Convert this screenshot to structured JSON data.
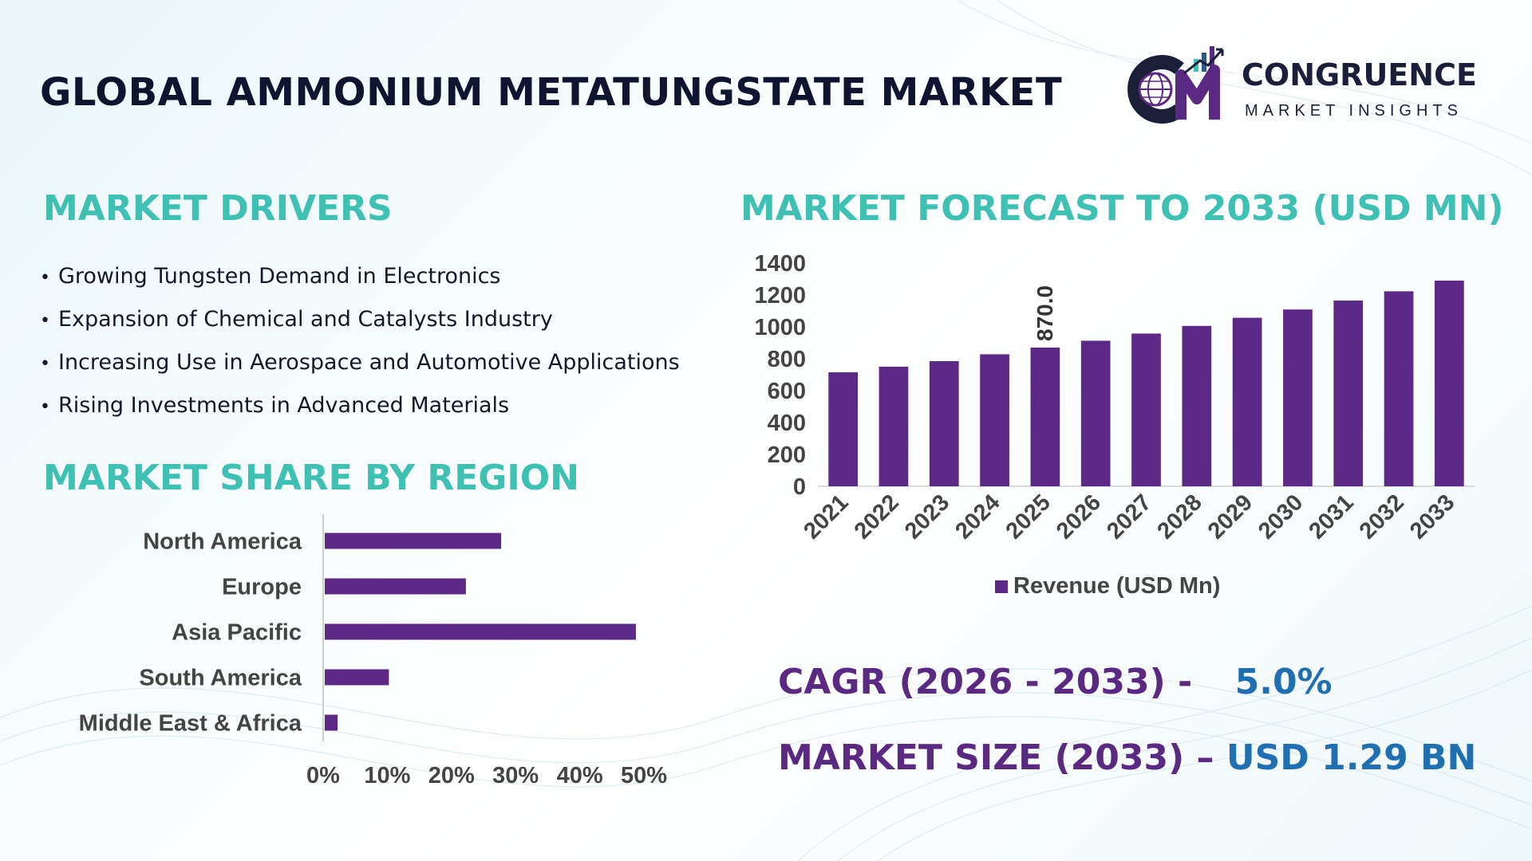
{
  "title": "GLOBAL AMMONIUM METATUNGSTATE MARKET",
  "logo": {
    "name": "CONGRUENCE",
    "tagline": "MARKET INSIGHTS",
    "icon": "cm-globe-growth-logo",
    "colors": {
      "navy": "#1b1f3a",
      "purple": "#5a2a82",
      "teal": "#3ec0b3"
    }
  },
  "drivers": {
    "heading": "MARKET DRIVERS",
    "items": [
      "Growing Tungsten Demand in Electronics",
      "Expansion of Chemical and Catalysts Industry",
      "Increasing Use in Aerospace and Automotive Applications",
      "Rising Investments in Advanced Materials"
    ]
  },
  "region_section": {
    "heading": "MARKET SHARE BY REGION"
  },
  "forecast_section": {
    "heading": "MARKET FORECAST TO 2033 (USD MN)"
  },
  "kpis": {
    "cagr_label": "CAGR (2026 - 2033) -",
    "cagr_value": "5.0%",
    "size_label": "MARKET SIZE (2033) –",
    "size_value": "USD 1.29 BN"
  },
  "colors": {
    "bar": "#5b2a86",
    "heading": "#3ec0b3",
    "kpi_label": "#5a2a82",
    "kpi_value": "#1f6fb2",
    "axis_text": "#444444"
  },
  "chart_data": [
    {
      "type": "bar",
      "orientation": "horizontal",
      "categories": [
        "North America",
        "Europe",
        "Asia Pacific",
        "South America",
        "Middle East & Africa"
      ],
      "values": [
        27.5,
        22,
        48.5,
        10,
        2
      ],
      "xlim": [
        0,
        50
      ],
      "xticks": [
        "0%",
        "10%",
        "20%",
        "30%",
        "40%",
        "50%"
      ],
      "grid": false
    },
    {
      "type": "bar",
      "categories": [
        "2021",
        "2022",
        "2023",
        "2024",
        "2025",
        "2026",
        "2027",
        "2028",
        "2029",
        "2030",
        "2031",
        "2032",
        "2033"
      ],
      "series": [
        {
          "name": "Revenue (USD Mn)",
          "values": [
            715,
            750,
            785,
            828,
            870,
            913,
            958,
            1006,
            1057,
            1109,
            1165,
            1223,
            1290
          ]
        }
      ],
      "ylim": [
        0,
        1400
      ],
      "yticks": [
        0,
        200,
        400,
        600,
        800,
        1000,
        1200,
        1400
      ],
      "data_labels": [
        {
          "category": "2025",
          "text": "870.0"
        }
      ],
      "legend_position": "bottom",
      "grid": false
    }
  ]
}
